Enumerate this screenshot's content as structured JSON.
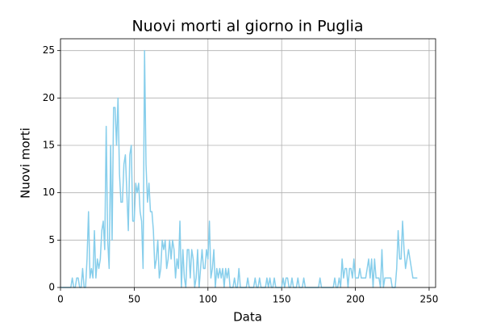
{
  "chart_data": {
    "type": "line",
    "title": "Nuovi morti al giorno in Puglia",
    "xlabel": "Data",
    "ylabel": "Nuovi morti",
    "x": [
      0,
      1,
      2,
      3,
      4,
      5,
      6,
      7,
      8,
      9,
      10,
      11,
      12,
      13,
      14,
      15,
      16,
      17,
      18,
      19,
      20,
      21,
      22,
      23,
      24,
      25,
      26,
      27,
      28,
      29,
      30,
      31,
      32,
      33,
      34,
      35,
      36,
      37,
      38,
      39,
      40,
      41,
      42,
      43,
      44,
      45,
      46,
      47,
      48,
      49,
      50,
      51,
      52,
      53,
      54,
      55,
      56,
      57,
      58,
      59,
      60,
      61,
      62,
      63,
      64,
      65,
      66,
      67,
      68,
      69,
      70,
      71,
      72,
      73,
      74,
      75,
      76,
      77,
      78,
      79,
      80,
      81,
      82,
      83,
      84,
      85,
      86,
      87,
      88,
      89,
      90,
      91,
      92,
      93,
      94,
      95,
      96,
      97,
      98,
      99,
      100,
      101,
      102,
      103,
      104,
      105,
      106,
      107,
      108,
      109,
      110,
      111,
      112,
      113,
      114,
      115,
      116,
      117,
      118,
      119,
      120,
      121,
      122,
      123,
      124,
      125,
      126,
      127,
      128,
      129,
      130,
      131,
      132,
      133,
      134,
      135,
      136,
      137,
      138,
      139,
      140,
      141,
      142,
      143,
      144,
      145,
      146,
      147,
      148,
      149,
      150,
      151,
      152,
      153,
      154,
      155,
      156,
      157,
      158,
      159,
      160,
      161,
      162,
      163,
      164,
      165,
      166,
      167,
      168,
      169,
      170,
      171,
      172,
      173,
      174,
      175,
      176,
      177,
      178,
      179,
      180,
      181,
      182,
      183,
      184,
      185,
      186,
      187,
      188,
      189,
      190,
      191,
      192,
      193,
      194,
      195,
      196,
      197,
      198,
      199,
      200,
      201,
      202,
      203,
      204,
      205,
      206,
      207,
      208,
      209,
      210,
      211,
      212,
      213,
      214,
      215,
      216,
      217,
      218,
      219,
      220,
      221,
      222,
      223,
      224,
      225,
      226,
      227,
      228,
      229,
      230,
      231,
      232,
      233,
      234,
      235,
      236,
      237,
      238,
      239,
      240,
      241,
      242
    ],
    "series": [
      {
        "color": "#87ceeb",
        "values": [
          0,
          0,
          0,
          0,
          0,
          0,
          0,
          0,
          1,
          0,
          0,
          1,
          1,
          0,
          0,
          2,
          0,
          0,
          3,
          8,
          1,
          2,
          1,
          6,
          1,
          3,
          2,
          3,
          6,
          7,
          4,
          17,
          5,
          2,
          15,
          5,
          19,
          19,
          15,
          20,
          12,
          9,
          9,
          13,
          14,
          10,
          6,
          14,
          15,
          7,
          7,
          11,
          10,
          11,
          8,
          7,
          2,
          25,
          13,
          9,
          11,
          8,
          8,
          6,
          2,
          3,
          5,
          1,
          2,
          5,
          4,
          5,
          2,
          3,
          5,
          3,
          5,
          4,
          1,
          3,
          2,
          7,
          0,
          4,
          1,
          0,
          4,
          4,
          1,
          4,
          3,
          0,
          1,
          4,
          0,
          2,
          4,
          2,
          2,
          4,
          3,
          7,
          1,
          2,
          4,
          0,
          2,
          1,
          2,
          1,
          2,
          0,
          2,
          1,
          2,
          0,
          0,
          0,
          1,
          0,
          0,
          2,
          0,
          0,
          0,
          0,
          0,
          1,
          0,
          0,
          0,
          0,
          1,
          0,
          0,
          1,
          0,
          0,
          0,
          0,
          1,
          0,
          1,
          0,
          0,
          1,
          0,
          0,
          0,
          0,
          0,
          1,
          0,
          1,
          1,
          0,
          0,
          1,
          0,
          0,
          0,
          1,
          0,
          0,
          0,
          1,
          0,
          0,
          0,
          0,
          0,
          0,
          0,
          0,
          0,
          0,
          1,
          0,
          0,
          0,
          0,
          0,
          0,
          0,
          0,
          0,
          1,
          0,
          0,
          1,
          0,
          3,
          1,
          2,
          2,
          0,
          2,
          2,
          1,
          3,
          1,
          1,
          1,
          2,
          1,
          1,
          1,
          1,
          2,
          3,
          1,
          3,
          0,
          3,
          1,
          1,
          1,
          0,
          4,
          0,
          1,
          1,
          1,
          1,
          1,
          0,
          0,
          0,
          2,
          6,
          3,
          3,
          7,
          4,
          2,
          3,
          4,
          3,
          2,
          1,
          1,
          1,
          1
        ]
      }
    ],
    "xlim": [
      0,
      254.4
    ],
    "ylim": [
      0,
      26.25
    ],
    "xticks": [
      0,
      50,
      100,
      150,
      200,
      250
    ],
    "yticks": [
      0,
      5,
      10,
      15,
      20,
      25
    ],
    "grid": true
  }
}
